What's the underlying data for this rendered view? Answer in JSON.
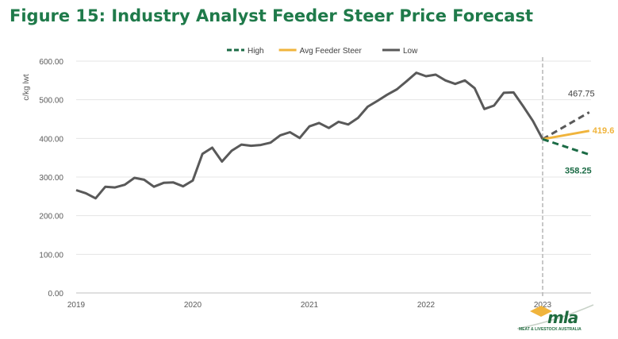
{
  "page": {
    "title": "Figure 15: Industry Analyst Feeder Steer Price Forecast"
  },
  "logo": {
    "word": "mla",
    "subtitle": "MEAT & LIVESTOCK AUSTRALIA"
  },
  "chart_data": {
    "type": "line",
    "ylabel": "c/kg lwt",
    "ylim": [
      0,
      600
    ],
    "yticks": [
      0,
      100,
      200,
      300,
      400,
      500,
      600
    ],
    "ytick_labels": [
      "0.00",
      "100.00",
      "200.00",
      "300.00",
      "400.00",
      "500.00",
      "600.00"
    ],
    "xlim": [
      2019,
      2023.5
    ],
    "xticks": [
      2019,
      2020,
      2021,
      2022,
      2023
    ],
    "xtick_labels": [
      "2019",
      "2020",
      "2021",
      "2022",
      "2023"
    ],
    "grid": "horizontal",
    "legend": "top-center",
    "reference_line": {
      "x": 2023,
      "style": "dashed",
      "color": "#b5b5b5"
    },
    "series": [
      {
        "name": "Low",
        "color": "#595959",
        "style": "solid",
        "points": [
          [
            2019.0,
            266
          ],
          [
            2019.083,
            258
          ],
          [
            2019.167,
            245
          ],
          [
            2019.25,
            275
          ],
          [
            2019.333,
            273
          ],
          [
            2019.417,
            280
          ],
          [
            2019.5,
            298
          ],
          [
            2019.583,
            293
          ],
          [
            2019.667,
            275
          ],
          [
            2019.75,
            285
          ],
          [
            2019.833,
            286
          ],
          [
            2019.917,
            276
          ],
          [
            2020.0,
            291
          ],
          [
            2020.083,
            360
          ],
          [
            2020.167,
            376
          ],
          [
            2020.25,
            340
          ],
          [
            2020.333,
            368
          ],
          [
            2020.417,
            384
          ],
          [
            2020.5,
            381
          ],
          [
            2020.583,
            383
          ],
          [
            2020.667,
            389
          ],
          [
            2020.75,
            408
          ],
          [
            2020.833,
            416
          ],
          [
            2020.917,
            401
          ],
          [
            2021.0,
            431
          ],
          [
            2021.083,
            440
          ],
          [
            2021.167,
            427
          ],
          [
            2021.25,
            443
          ],
          [
            2021.333,
            436
          ],
          [
            2021.417,
            453
          ],
          [
            2021.5,
            482
          ],
          [
            2021.583,
            497
          ],
          [
            2021.667,
            513
          ],
          [
            2021.75,
            527
          ],
          [
            2021.833,
            548
          ],
          [
            2021.917,
            570
          ],
          [
            2022.0,
            561
          ],
          [
            2022.083,
            565
          ],
          [
            2022.167,
            550
          ],
          [
            2022.25,
            541
          ],
          [
            2022.333,
            550
          ],
          [
            2022.417,
            530
          ],
          [
            2022.5,
            476
          ],
          [
            2022.583,
            485
          ],
          [
            2022.667,
            518
          ],
          [
            2022.75,
            519
          ],
          [
            2022.833,
            483
          ],
          [
            2022.917,
            445
          ],
          [
            2023.0,
            398
          ]
        ]
      },
      {
        "name": "Low",
        "color": "#595959",
        "style": "dashed",
        "points": [
          [
            2023.0,
            398
          ],
          [
            2023.4,
            467.75
          ]
        ]
      },
      {
        "name": "Avg Feeder Steer",
        "color": "#f0b43c",
        "style": "solid",
        "points": [
          [
            2023.0,
            398
          ],
          [
            2023.4,
            419.6
          ]
        ]
      },
      {
        "name": "High",
        "color": "#1b6b45",
        "style": "dashed",
        "points": [
          [
            2023.0,
            398
          ],
          [
            2023.4,
            358.25
          ]
        ]
      }
    ],
    "legend_entries": [
      {
        "label": "High",
        "color": "#1b6b45",
        "style": "dashed"
      },
      {
        "label": "Avg Feeder Steer",
        "color": "#f0b43c",
        "style": "solid"
      },
      {
        "label": "Low",
        "color": "#595959",
        "style": "solid"
      }
    ],
    "annotations": [
      {
        "text": "467.75",
        "x": 2023.4,
        "y": 467.75,
        "color": "#404040"
      },
      {
        "text": "419.6",
        "x": 2023.4,
        "y": 419.6,
        "color": "#f0b43c"
      },
      {
        "text": "358.25",
        "x": 2023.4,
        "y": 358.25,
        "color": "#1b6b45"
      }
    ]
  }
}
